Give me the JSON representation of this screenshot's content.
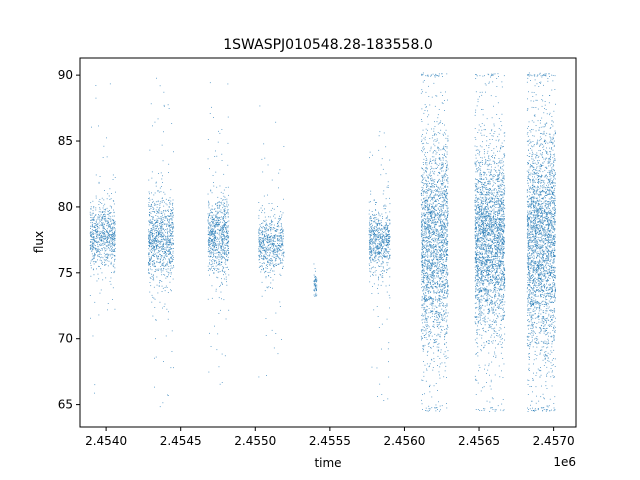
{
  "chart_data": {
    "type": "scatter",
    "title": "1SWASPJ010548.28-183558.0",
    "xlabel": "time",
    "ylabel": "flux",
    "x_offset_label": "1e6",
    "xlim": [
      2453825,
      2457150
    ],
    "ylim": [
      63.3,
      91.3
    ],
    "x_ticks": [
      {
        "value": 2454000,
        "label": "2.4540"
      },
      {
        "value": 2454500,
        "label": "2.4545"
      },
      {
        "value": 2455000,
        "label": "2.4550"
      },
      {
        "value": 2455500,
        "label": "2.4555"
      },
      {
        "value": 2456000,
        "label": "2.4560"
      },
      {
        "value": 2456500,
        "label": "2.4565"
      },
      {
        "value": 2457000,
        "label": "2.4570"
      }
    ],
    "y_ticks": [
      {
        "value": 65,
        "label": "65"
      },
      {
        "value": 70,
        "label": "70"
      },
      {
        "value": 75,
        "label": "75"
      },
      {
        "value": 80,
        "label": "80"
      },
      {
        "value": 85,
        "label": "85"
      },
      {
        "value": 90,
        "label": "90"
      }
    ],
    "grid": false,
    "point_color": "#1f77b4",
    "series": [
      {
        "observing_seasons": [
          {
            "start": 2453890,
            "end": 2454060,
            "center": 77.8,
            "spread": 1.2,
            "min": 65.0,
            "max": 90.0,
            "count": 700
          },
          {
            "start": 2454280,
            "end": 2454450,
            "center": 77.5,
            "spread": 1.6,
            "min": 64.8,
            "max": 90.0,
            "count": 900
          },
          {
            "start": 2454680,
            "end": 2454820,
            "center": 77.8,
            "spread": 1.4,
            "min": 66.3,
            "max": 90.0,
            "count": 750
          },
          {
            "start": 2455020,
            "end": 2455190,
            "center": 77.3,
            "spread": 1.1,
            "min": 65.5,
            "max": 89.0,
            "count": 600
          },
          {
            "start": 2455390,
            "end": 2455410,
            "center": 74.2,
            "spread": 0.5,
            "min": 73.2,
            "max": 75.8,
            "count": 60
          },
          {
            "start": 2455760,
            "end": 2455900,
            "center": 77.4,
            "spread": 1.2,
            "min": 65.0,
            "max": 86.0,
            "count": 650
          },
          {
            "start": 2456110,
            "end": 2456290,
            "center": 77.5,
            "spread": 4.0,
            "min": 64.5,
            "max": 90.2,
            "count": 2200
          },
          {
            "start": 2456470,
            "end": 2456670,
            "center": 77.5,
            "spread": 3.4,
            "min": 64.5,
            "max": 90.2,
            "count": 2600
          },
          {
            "start": 2456820,
            "end": 2457010,
            "center": 77.5,
            "spread": 4.3,
            "min": 64.5,
            "max": 90.2,
            "count": 2700
          }
        ]
      }
    ]
  }
}
